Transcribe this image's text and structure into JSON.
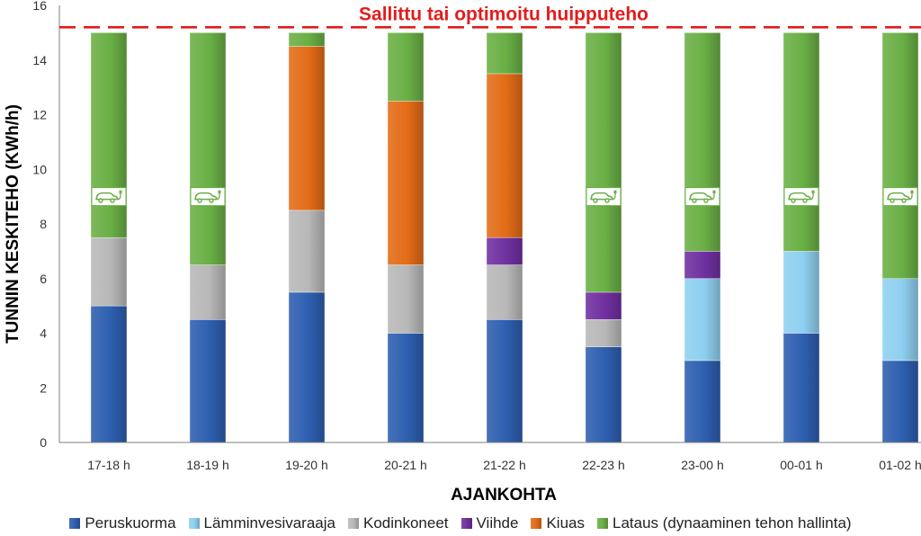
{
  "chart_data": {
    "type": "bar",
    "stacked": true,
    "categories": [
      "17-18 h",
      "18-19 h",
      "19-20 h",
      "20-21 h",
      "21-22 h",
      "22-23 h",
      "23-00 h",
      "00-01 h",
      "01-02 h"
    ],
    "series": [
      {
        "name": "Peruskuorma",
        "color": "#2e5fb0",
        "values": [
          5,
          4.5,
          5.5,
          4,
          4.5,
          3.5,
          3,
          4,
          3
        ]
      },
      {
        "name": "Lämminvesivaraaja",
        "color": "#8fd0f0",
        "values": [
          0,
          0,
          0,
          0,
          0,
          0,
          3,
          3,
          3
        ]
      },
      {
        "name": "Kodinkoneet",
        "color": "#b8b8b8",
        "values": [
          2.5,
          2,
          3,
          2.5,
          2,
          1,
          0,
          0,
          0
        ]
      },
      {
        "name": "Viihde",
        "color": "#7030a0",
        "values": [
          0,
          0,
          0,
          0,
          1,
          1,
          1,
          0,
          0
        ]
      },
      {
        "name": "Kiuas",
        "color": "#e36c17",
        "values": [
          0,
          0,
          6,
          6,
          6,
          0,
          0,
          0,
          0
        ]
      },
      {
        "name": "Lataus (dynaaminen tehon hallinta)",
        "color": "#6aaf45",
        "values": [
          7.5,
          8.5,
          0.5,
          2.5,
          1.5,
          9.5,
          8,
          8,
          9
        ]
      }
    ],
    "charging_icon_columns": [
      "17-18 h",
      "18-19 h",
      "22-23 h",
      "23-00 h",
      "00-01 h",
      "01-02 h"
    ],
    "charging_icon_name": "ev-charging-car-icon",
    "reference_line": {
      "value": 15.2,
      "label": "Sallittu tai optimoitu huipputeho",
      "color": "#e31c1c",
      "style": "dashed"
    },
    "ylim": [
      0,
      16
    ],
    "yticks": [
      0,
      2,
      4,
      6,
      8,
      10,
      12,
      14,
      16
    ],
    "ylabel": "TUNNIN KESKITEHO (KWh/h)",
    "xlabel": "AJANKOHTA",
    "legend_position": "bottom",
    "grid": false
  }
}
